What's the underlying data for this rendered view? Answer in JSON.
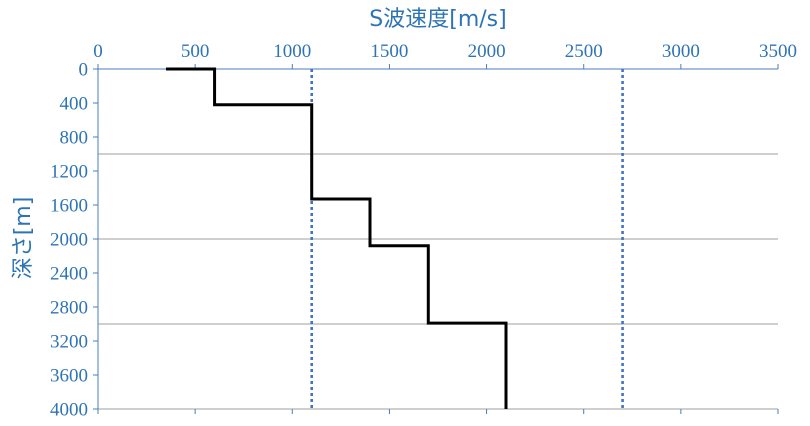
{
  "chart_data": {
    "type": "line",
    "xlabel": "S波速度[m/s]",
    "ylabel": "深さ[m]",
    "x_axis_position": "top",
    "y_axis_inverted": true,
    "xlim": [
      0,
      3500
    ],
    "ylim": [
      0,
      4000
    ],
    "x_ticks": [
      "0",
      "500",
      "1000",
      "1500",
      "2000",
      "2500",
      "3000",
      "3500"
    ],
    "y_ticks": [
      "0",
      "400",
      "800",
      "1200",
      "1600",
      "2000",
      "2400",
      "2800",
      "3200",
      "3600",
      "4000"
    ],
    "grid": {
      "horizontal_lines_at": [
        0,
        1000,
        2000,
        3000,
        4000
      ]
    },
    "profile_series": {
      "style": "step",
      "color": "#000000",
      "points": [
        [
          350,
          0
        ],
        [
          600,
          0
        ],
        [
          600,
          420
        ],
        [
          1100,
          420
        ],
        [
          1100,
          1530
        ],
        [
          1400,
          1530
        ],
        [
          1400,
          2080
        ],
        [
          1700,
          2080
        ],
        [
          1700,
          2990
        ],
        [
          2100,
          2990
        ],
        [
          2100,
          4000
        ]
      ]
    },
    "reference_lines": [
      {
        "x": 1100,
        "style": "dotted",
        "color": "#4472c4"
      },
      {
        "x": 2700,
        "style": "dotted",
        "color": "#4472c4"
      }
    ],
    "colors": {
      "axis_text": "#2e74b5",
      "axis_line": "#4a7ebb",
      "grid": "#7f7f7f"
    }
  }
}
